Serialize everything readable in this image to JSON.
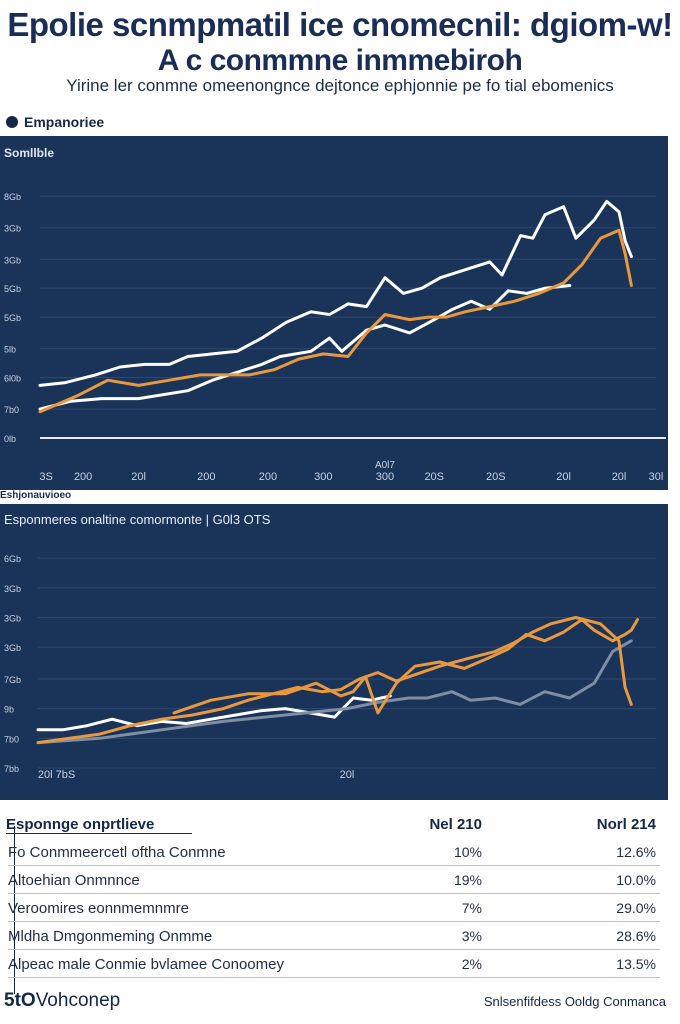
{
  "header": {
    "title_line1": "Epolie scnmpmatil ice cnomecnil: dgiom-w!",
    "title_line2": "A c conmmne inmmebiroh",
    "subtitle": "Yirine ler conmne omeenongnce dejtonce ephjonnie pe fo tial ebomenics"
  },
  "section_label": "Empanoriee",
  "panel1": {
    "label": "Somllble"
  },
  "divider_label": "Eshjonauvioeo",
  "panel2": {
    "title": "Esponmeres onaltine comormonte | G0l3 OTS"
  },
  "colors": {
    "panel": "#1a3359",
    "white_line": "#ffffff",
    "orange_line": "#e8993f",
    "gray_line": "#7f8ea4"
  },
  "chart_data": [
    {
      "type": "line",
      "title": "Somllble",
      "ylim": [
        0,
        105
      ],
      "xlim": [
        0,
        100
      ],
      "y_ticks": [
        {
          "value": 0,
          "label": "0lb"
        },
        {
          "value": 11,
          "label": "7b0"
        },
        {
          "value": 23,
          "label": "6l0b"
        },
        {
          "value": 34,
          "label": "5lb"
        },
        {
          "value": 46,
          "label": "5Gb"
        },
        {
          "value": 57,
          "label": "5Gb"
        },
        {
          "value": 68,
          "label": "3Gb"
        },
        {
          "value": 80,
          "label": "3Gb"
        },
        {
          "value": 92,
          "label": "8Gb"
        }
      ],
      "x_ticks": [
        {
          "value": 1,
          "label": "3S"
        },
        {
          "value": 7,
          "label": "200"
        },
        {
          "value": 16,
          "label": "20l"
        },
        {
          "value": 27,
          "label": "200"
        },
        {
          "value": 37,
          "label": "200"
        },
        {
          "value": 46,
          "label": "300"
        },
        {
          "value": 56,
          "label": "300"
        },
        {
          "value": 64,
          "label": "20S"
        },
        {
          "value": 74,
          "label": "20S"
        },
        {
          "value": 85,
          "label": "20l"
        },
        {
          "value": 94,
          "label": "20l"
        },
        {
          "value": 100,
          "label": "30l"
        }
      ],
      "annotation": "A0l7",
      "series": [
        {
          "name": "white-upper",
          "color": "#ffffff",
          "x": [
            0,
            4,
            9,
            13,
            17,
            21,
            24,
            28,
            32,
            36,
            40,
            44,
            47,
            50,
            53,
            56,
            59,
            62,
            65,
            69,
            73,
            75,
            76,
            78,
            80,
            82,
            85,
            87,
            90,
            92,
            94,
            95,
            96
          ],
          "y": [
            20,
            21,
            24,
            27,
            28,
            28,
            31,
            32,
            33,
            38,
            44,
            48,
            47,
            51,
            50,
            61,
            55,
            57,
            61,
            64,
            67,
            62,
            67,
            77,
            76,
            85,
            88,
            76,
            83,
            90,
            86,
            75,
            69
          ]
        },
        {
          "name": "white-lower",
          "color": "#ffffff",
          "x": [
            0,
            5,
            10,
            16,
            24,
            28,
            32,
            36,
            39,
            44,
            47,
            49,
            53,
            56,
            60,
            64,
            67,
            70,
            73,
            76,
            79,
            82,
            86
          ],
          "y": [
            11,
            14,
            15,
            15,
            18,
            22,
            25,
            28,
            31,
            33,
            38,
            33,
            41,
            43,
            40,
            45,
            49,
            52,
            49,
            56,
            55,
            57,
            58
          ]
        },
        {
          "name": "orange",
          "color": "#e8993f",
          "x": [
            0,
            6,
            11,
            16,
            21,
            26,
            30,
            34,
            38,
            42,
            46,
            50,
            53,
            56,
            60,
            63,
            66,
            69,
            73,
            77,
            81,
            85,
            88,
            91,
            94,
            95,
            96
          ],
          "y": [
            10,
            16,
            22,
            20,
            22,
            24,
            24,
            24,
            26,
            30,
            32,
            31,
            40,
            47,
            45,
            46,
            46,
            48,
            50,
            52,
            55,
            59,
            66,
            76,
            79,
            70,
            58
          ]
        }
      ]
    },
    {
      "type": "line",
      "title": "Esponmeres onaltine comormonte | G0l3 OTS",
      "ylim": [
        0,
        100
      ],
      "xlim": [
        0,
        100
      ],
      "y_ticks": [
        {
          "value": 0,
          "label": "7bb"
        },
        {
          "value": 14,
          "label": "7b0"
        },
        {
          "value": 28,
          "label": "9b"
        },
        {
          "value": 42,
          "label": "7Gb"
        },
        {
          "value": 57,
          "label": "3Gb"
        },
        {
          "value": 71,
          "label": "3Gb"
        },
        {
          "value": 85,
          "label": "3Gb"
        },
        {
          "value": 99,
          "label": "6Gb"
        }
      ],
      "x_ticks": [
        {
          "value": 3,
          "label": "20l 7bS"
        },
        {
          "value": 50,
          "label": "20l"
        }
      ],
      "series": [
        {
          "name": "white",
          "color": "#ffffff",
          "x": [
            0,
            4,
            8,
            12,
            16,
            20,
            24,
            28,
            32,
            36,
            40,
            44,
            48,
            51,
            54,
            57
          ],
          "y": [
            18,
            18,
            20,
            23,
            20,
            22,
            21,
            23,
            25,
            27,
            28,
            26,
            24,
            33,
            32,
            34
          ]
        },
        {
          "name": "gray",
          "color": "#7f8ea4",
          "x": [
            0,
            10,
            20,
            30,
            40,
            50,
            55,
            60,
            63,
            67,
            70,
            74,
            78,
            82,
            86,
            90,
            93,
            96
          ],
          "y": [
            12,
            14,
            18,
            22,
            25,
            28,
            31,
            33,
            33,
            36,
            32,
            33,
            30,
            36,
            33,
            40,
            55,
            60
          ]
        },
        {
          "name": "orange-a",
          "color": "#e8993f",
          "x": [
            0,
            5,
            10,
            15,
            20,
            25,
            30,
            34,
            38,
            42,
            46,
            49,
            52,
            55,
            58,
            61,
            65,
            70,
            74,
            77,
            80,
            83,
            87,
            91,
            94,
            95,
            96
          ],
          "y": [
            12,
            14,
            16,
            20,
            23,
            25,
            28,
            32,
            35,
            38,
            36,
            37,
            42,
            45,
            41,
            44,
            48,
            52,
            55,
            59,
            64,
            68,
            71,
            68,
            60,
            38,
            30
          ]
        },
        {
          "name": "orange-b",
          "color": "#e8993f",
          "x": [
            22,
            28,
            34,
            40,
            45,
            49,
            51,
            53,
            55,
            58,
            61,
            65,
            69,
            73,
            76,
            79,
            82,
            85,
            88,
            90,
            93,
            95,
            96,
            97
          ],
          "y": [
            26,
            32,
            35,
            35,
            40,
            34,
            36,
            43,
            26,
            40,
            48,
            50,
            47,
            52,
            56,
            63,
            60,
            64,
            70,
            65,
            60,
            63,
            65,
            70
          ]
        }
      ]
    }
  ],
  "table": {
    "headers": [
      "Esponnge onprtlieve",
      "Nel 210",
      "Norl 214"
    ],
    "rows": [
      [
        "Fo Conmmeercetl oftha Conmne",
        "10%",
        "12.6%"
      ],
      [
        "Altoehian Onmnnce",
        "19%",
        "10.0%"
      ],
      [
        "Veroomires eonnmemnmre",
        "7%",
        "29.0%"
      ],
      [
        "Mldha Dmgonmeming Onmme",
        "3%",
        "28.6%"
      ],
      [
        "Alpeac male Conmie bvlamee Conoomey",
        "2%",
        "13.5%"
      ]
    ]
  },
  "footer": {
    "brand_bold": "5tO",
    "brand_rest": "Vohconep",
    "right": "Snlsenfifdess Ooldg Conmanca"
  }
}
